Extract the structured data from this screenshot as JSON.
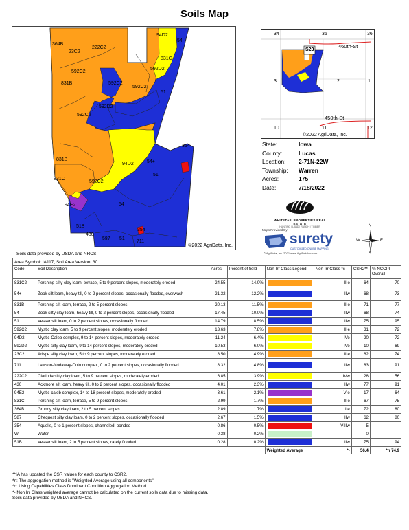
{
  "title": "Soils Map",
  "map": {
    "copyright": "©2022 AgriData, Inc.",
    "labels": [
      "364B",
      "222C2",
      "23C2",
      "94D2",
      "54",
      "831C",
      "592C2",
      "831B",
      "592D2",
      "592C2",
      "592C2",
      "51",
      "592D2",
      "592C2",
      "831B",
      "94D2",
      "54+",
      "354",
      "51",
      "831C",
      "592C2",
      "94E2",
      "54",
      "51B",
      "430",
      "587",
      "51",
      "354",
      "711"
    ]
  },
  "data_credit_top": "Soils data provided by USDA and NRCS.",
  "locator": {
    "section_numbers": [
      "34",
      "35",
      "36",
      "3",
      "2",
      "1",
      "10",
      "11",
      "12"
    ],
    "parcel_label": "S23",
    "roads": [
      "460th-St",
      "450th-St"
    ],
    "copyright": "©2022 AgriData, Inc."
  },
  "info": [
    {
      "key": "State:",
      "value": "Iowa"
    },
    {
      "key": "County:",
      "value": "Lucas"
    },
    {
      "key": "Location:",
      "value": "2-71N-22W"
    },
    {
      "key": "Township:",
      "value": "Warren"
    },
    {
      "key": "Acres:",
      "value": "175"
    },
    {
      "key": "Date:",
      "value": "7/18/2022"
    }
  ],
  "logo1": {
    "name": "WHITETAIL PROPERTIES REAL ESTATE",
    "sub": "HUNTING | LAND | RANCH | TIMBER"
  },
  "surety": {
    "pre": "Maps Provided By:",
    "name": "surety",
    "tag": "CUSTOMIZED ONLINE MAPPING",
    "copy": "© AgriData, Inc. 2021          www.AgriDataInc.com"
  },
  "compass": {
    "n": "N",
    "s": "S",
    "e": "E",
    "w": "W"
  },
  "table": {
    "area_symbol": "Area Symbol: IA117, Soil Area Version: 30",
    "headers": [
      "Code",
      "Soil Description",
      "Acres",
      "Percent of field",
      "Non-Irr Class Legend",
      "Non-Irr Class *c",
      "CSR2**",
      "*n NCCPI Overall"
    ],
    "rows": [
      {
        "code": "831C2",
        "desc": "Pershing silty clay loam, terrace, 5 to 9 percent slopes, moderately eroded",
        "acres": "24.55",
        "pct": "14.0%",
        "color": "#ff9f1a",
        "cls": "IIIe",
        "csr": "64",
        "ncc": "70"
      },
      {
        "code": "54+",
        "desc": "Zook silt loam, heavy till, 0 to 2 percent slopes, occasionally flooded, overwash",
        "acres": "21.32",
        "pct": "12.2%",
        "color": "#1e2fd6",
        "cls": "IIw",
        "csr": "68",
        "ncc": "73"
      },
      {
        "code": "831B",
        "desc": "Pershing silt loam, terrace, 2 to 5 percent slopes",
        "acres": "20.13",
        "pct": "11.5%",
        "color": "#ff9f1a",
        "cls": "IIIe",
        "csr": "71",
        "ncc": "77"
      },
      {
        "code": "54",
        "desc": "Zook silty clay loam, heavy till, 0 to 2 percent slopes, occasionally flooded",
        "acres": "17.45",
        "pct": "10.0%",
        "color": "#1e2fd6",
        "cls": "IIw",
        "csr": "68",
        "ncc": "74"
      },
      {
        "code": "51",
        "desc": "Vesser silt loam, 0 to 2 percent slopes, occasionally flooded",
        "acres": "14.79",
        "pct": "8.5%",
        "color": "#1e2fd6",
        "cls": "IIw",
        "csr": "75",
        "ncc": "95"
      },
      {
        "code": "592C2",
        "desc": "Mystic clay loam, 5 to 9 percent slopes, moderately eroded",
        "acres": "13.63",
        "pct": "7.8%",
        "color": "#ff9f1a",
        "cls": "IIIe",
        "csr": "31",
        "ncc": "72"
      },
      {
        "code": "94D2",
        "desc": "Mystic-Caleb complex, 9 to 14 percent slopes, moderately eroded",
        "acres": "11.24",
        "pct": "6.4%",
        "color": "#ffff00",
        "cls": "IVe",
        "csr": "20",
        "ncc": "72"
      },
      {
        "code": "592D2",
        "desc": "Mystic silty clay loam, 9 to 14 percent slopes, moderately eroded",
        "acres": "10.53",
        "pct": "6.0%",
        "color": "#ffff00",
        "cls": "IVe",
        "csr": "10",
        "ncc": "69"
      },
      {
        "code": "23C2",
        "desc": "Arispe silty clay loam, 5 to 9 percent slopes, moderately eroded",
        "acres": "8.50",
        "pct": "4.9%",
        "color": "#ff9f1a",
        "cls": "IIIe",
        "csr": "62",
        "ncc": "74"
      },
      {
        "code": "711",
        "desc": "Lawson-Nodaway-Colo complex, 0 to 2 percent slopes, occasionally flooded",
        "acres": "8.32",
        "pct": "4.8%",
        "color": "#1e2fd6",
        "cls": "IIw",
        "csr": "83",
        "ncc": "91"
      },
      {
        "code": "222C2",
        "desc": "Clarinda silty clay loam, 5 to 9 percent slopes, moderately eroded",
        "acres": "6.85",
        "pct": "3.9%",
        "color": "#ffff00",
        "cls": "IVw",
        "csr": "28",
        "ncc": "56"
      },
      {
        "code": "430",
        "desc": "Ackmore silt loam, heavy till, 0 to 2 percent slopes, occasionally flooded",
        "acres": "4.01",
        "pct": "2.3%",
        "color": "#1e2fd6",
        "cls": "IIw",
        "csr": "77",
        "ncc": "91"
      },
      {
        "code": "94E2",
        "desc": "Mystic-caleb complex, 14 to 18 percent slopes, moderately eroded",
        "acres": "3.61",
        "pct": "2.1%",
        "color": "#9933cc",
        "cls": "VIe",
        "csr": "17",
        "ncc": "64"
      },
      {
        "code": "831C",
        "desc": "Pershing silt loam, terrace, 5 to 9 percent slopes",
        "acres": "2.99",
        "pct": "1.7%",
        "color": "#ff9f1a",
        "cls": "IIIe",
        "csr": "67",
        "ncc": "75"
      },
      {
        "code": "364B",
        "desc": "Grundy silty clay loam, 2 to 5 percent slopes",
        "acres": "2.89",
        "pct": "1.7%",
        "color": "#1e2fd6",
        "cls": "IIe",
        "csr": "72",
        "ncc": "80"
      },
      {
        "code": "587",
        "desc": "Chequest silty clay loam, 0 to 2 percent slopes, occasionally flooded",
        "acres": "2.67",
        "pct": "1.5%",
        "color": "#1e2fd6",
        "cls": "IIw",
        "csr": "62",
        "ncc": "80"
      },
      {
        "code": "354",
        "desc": "Aquolls, 0 to 1 percent slopes, channeled, ponded",
        "acres": "0.86",
        "pct": "0.5%",
        "color": "#ee1111",
        "cls": "VIIIw",
        "csr": "5",
        "ncc": ""
      },
      {
        "code": "W",
        "desc": "Water",
        "acres": "0.38",
        "pct": "0.2%",
        "color": "#c8f0c8",
        "cls": "",
        "csr": "0",
        "ncc": ""
      },
      {
        "code": "51B",
        "desc": "Vesser silt loam, 2 to 5 percent slopes, rarely flooded",
        "acres": "0.28",
        "pct": "0.2%",
        "color": "#1e2fd6",
        "cls": "IIw",
        "csr": "75",
        "ncc": "94"
      }
    ],
    "footer": {
      "label": "Weighted Average",
      "cls": "*-",
      "csr": "56.4",
      "ncc": "*n 74.9"
    }
  },
  "notes": [
    "**IA has updated the CSR values for each county to CSR2.",
    "*n: The aggregation method is \"Weighted Average using all components\"",
    "*c: Using Capabilities Class Dominant Condition Aggregation Method",
    "*- Non Irr Class weighted average cannot be calculated on the current soils data due to missing data.",
    "Soils data provided by USDA and NRCS."
  ]
}
